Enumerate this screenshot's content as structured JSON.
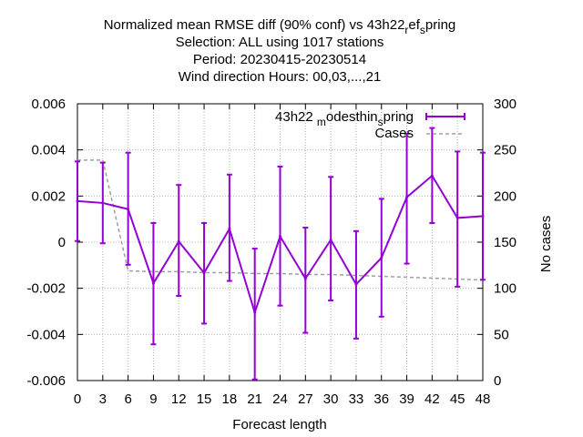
{
  "chart_data": {
    "type": "line",
    "title_lines": [
      "Normalized mean RMSE diff (90% conf) vs 43h22_ref_spring",
      "Selection: ALL using  1017 stations",
      "Period: 20230415-20230514",
      "Wind direction   Hours:  00,03,...,21"
    ],
    "xlabel": "Forecast length",
    "ylabel": "",
    "y2label": "No cases",
    "x": [
      0,
      3,
      6,
      9,
      12,
      15,
      18,
      21,
      24,
      27,
      30,
      33,
      36,
      39,
      42,
      45,
      48
    ],
    "xlim": [
      0,
      48
    ],
    "ylim": [
      -0.006,
      0.006
    ],
    "y2lim": [
      0,
      300
    ],
    "x_ticks": [
      "0",
      "3",
      "6",
      "9",
      "12",
      "15",
      "18",
      "21",
      "24",
      "27",
      "30",
      "33",
      "36",
      "39",
      "42",
      "45",
      "48"
    ],
    "y_ticks": [
      "-0.006",
      "-0.004",
      "-0.002",
      "0",
      "0.002",
      "0.004",
      "0.006"
    ],
    "y2_ticks": [
      "0",
      "50",
      "100",
      "150",
      "200",
      "250",
      "300"
    ],
    "grid": true,
    "legend_position": "top-right",
    "series": [
      {
        "name": "43h22_modesthin_spring",
        "color": "#9400d3",
        "axis": "left",
        "values": [
          0.00178,
          0.0017,
          0.00143,
          -0.00178,
          3e-05,
          -0.00133,
          0.00058,
          -0.00305,
          0.00025,
          -0.00158,
          0.0001,
          -0.00183,
          -0.00068,
          0.00195,
          0.00288,
          0.00105,
          0.00113
        ],
        "err_low": [
          5e-05,
          -5e-05,
          -0.00098,
          -0.00443,
          -0.00233,
          -0.00353,
          -0.00168,
          -0.00595,
          -0.00275,
          -0.00393,
          -0.00253,
          -0.00418,
          -0.00323,
          -0.00093,
          0.00083,
          -0.00193,
          -0.00163
        ],
        "err_high": [
          0.0035,
          0.00345,
          0.00388,
          0.00083,
          0.00248,
          0.00083,
          0.00293,
          -0.00028,
          0.00328,
          0.00063,
          0.00283,
          0.00048,
          0.00188,
          0.0047,
          0.00495,
          0.00393,
          0.00388
        ]
      },
      {
        "name": "Cases",
        "color": "#a0a0a0",
        "axis": "right",
        "style": "dashed",
        "values": [
          239,
          239,
          119,
          118,
          118,
          117,
          117,
          116,
          116,
          115,
          115,
          114,
          113,
          112,
          111,
          110,
          109
        ]
      }
    ]
  }
}
